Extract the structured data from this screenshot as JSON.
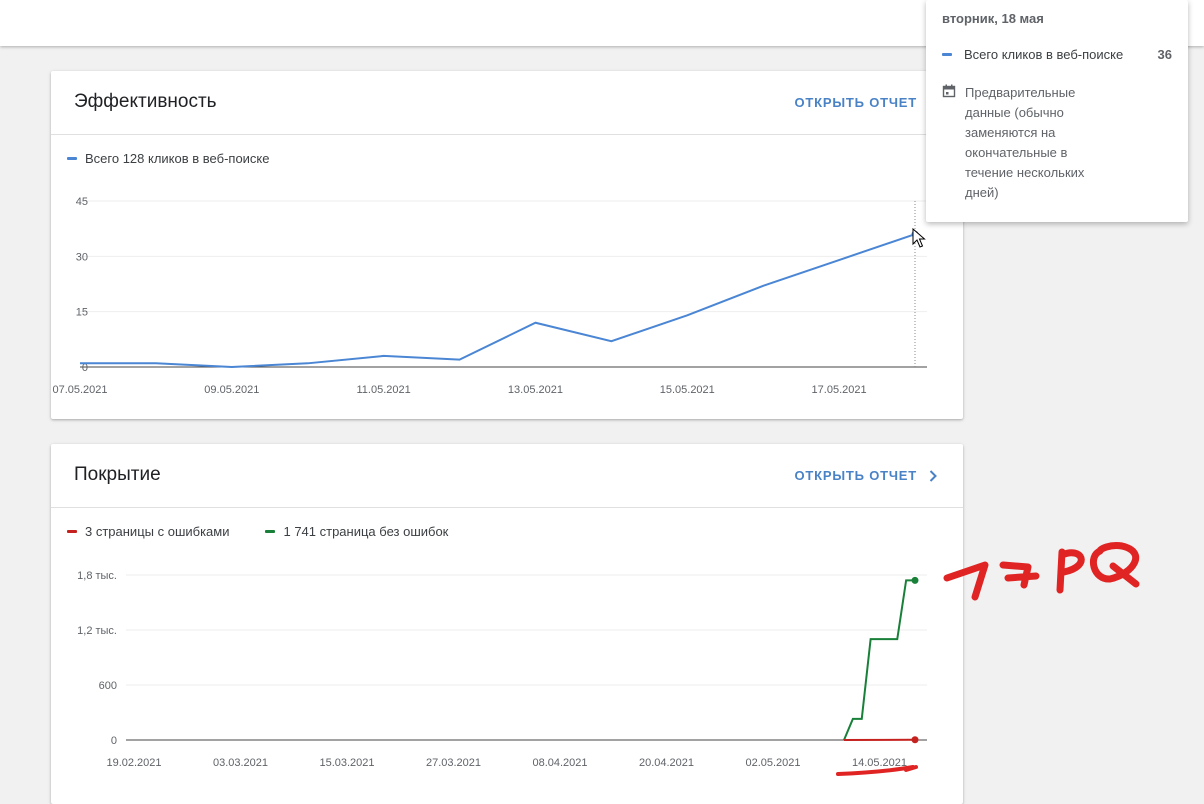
{
  "tooltip": {
    "date": "вторник, 18 мая",
    "series_label": "Всего кликов в веб-поиске",
    "series_value": "36",
    "note": "Предварительные данные (обычно заменяются на окончательные в течение нескольких дней)",
    "note_icon": "calendar-icon"
  },
  "performance": {
    "title": "Эффективность",
    "open_report": "ОТКРЫТЬ ОТЧЕТ",
    "legend": "Всего 128 кликов в веб-поиске"
  },
  "coverage": {
    "title": "Покрытие",
    "open_report": "ОТКРЫТЬ ОТЧЕТ",
    "legend_errors": "3 страницы с ошибками",
    "legend_valid": "1 741 страница без ошибок"
  },
  "annotation": {
    "handwritten_text": "1 7 P Q"
  },
  "colors": {
    "clicks": "#4a86d4",
    "errors": "#c5221f",
    "valid": "#188038",
    "link": "#4a82c6",
    "handwriting": "#e02424"
  },
  "chart_data": [
    {
      "type": "line",
      "x": [
        "07.05.2021",
        "08.05.2021",
        "09.05.2021",
        "10.05.2021",
        "11.05.2021",
        "12.05.2021",
        "13.05.2021",
        "14.05.2021",
        "15.05.2021",
        "16.05.2021",
        "17.05.2021",
        "18.05.2021"
      ],
      "series": [
        {
          "name": "Всего 128 кликов в веб-поиске",
          "values": [
            1,
            1,
            0,
            1,
            3,
            2,
            12,
            7,
            14,
            22,
            29,
            36
          ]
        }
      ],
      "x_tick_labels": [
        "07.05.2021",
        "09.05.2021",
        "11.05.2021",
        "13.05.2021",
        "15.05.2021",
        "17.05.2021"
      ],
      "y_ticks": [
        0,
        15,
        30,
        45
      ],
      "y_tick_labels": [
        "0",
        "15",
        "30",
        "45"
      ],
      "ylim": [
        0,
        45
      ],
      "highlight_x": "18.05.2021",
      "grid": true
    },
    {
      "type": "line",
      "x_range": [
        "19.02.2021",
        "18.05.2021"
      ],
      "series": [
        {
          "name": "3 страницы с ошибками",
          "points": [
            [
              "10.05.2021",
              0
            ],
            [
              "18.05.2021",
              3
            ]
          ]
        },
        {
          "name": "1 741 страница без ошибок",
          "points": [
            [
              "10.05.2021",
              0
            ],
            [
              "11.05.2021",
              230
            ],
            [
              "12.05.2021",
              230
            ],
            [
              "13.05.2021",
              1100
            ],
            [
              "16.05.2021",
              1100
            ],
            [
              "17.05.2021",
              1741
            ],
            [
              "18.05.2021",
              1741
            ]
          ]
        }
      ],
      "x_tick_labels": [
        "19.02.2021",
        "03.03.2021",
        "15.03.2021",
        "27.03.2021",
        "08.04.2021",
        "20.04.2021",
        "02.05.2021",
        "14.05.2021"
      ],
      "y_ticks": [
        0,
        600,
        1200,
        1800
      ],
      "y_tick_labels": [
        "0",
        "600",
        "1,2 тыс.",
        "1,8 тыс."
      ],
      "ylim": [
        0,
        1800
      ],
      "grid": true
    }
  ]
}
